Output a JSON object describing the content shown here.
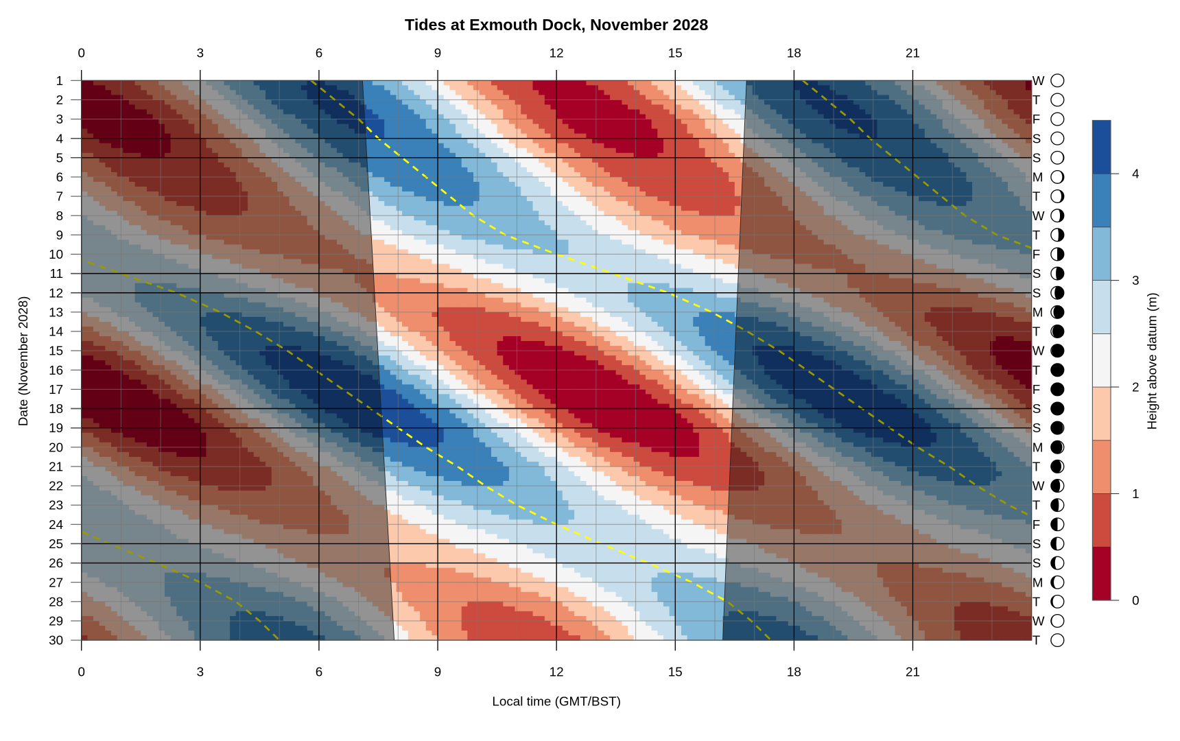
{
  "chart_data": {
    "type": "heatmap",
    "title": "Tides at Exmouth Dock, November 2028",
    "xlabel": "Local time (GMT/BST)",
    "ylabel": "Date (November 2028)",
    "colorbar_label": "Height above datum (m)",
    "xlim": [
      0,
      24
    ],
    "ylim": [
      1,
      30
    ],
    "x_ticks": [
      0,
      3,
      6,
      9,
      12,
      15,
      18,
      21
    ],
    "y_ticks": [
      1,
      2,
      3,
      4,
      5,
      6,
      7,
      8,
      9,
      10,
      11,
      12,
      13,
      14,
      15,
      16,
      17,
      18,
      19,
      20,
      21,
      22,
      23,
      24,
      25,
      26,
      27,
      28,
      29,
      30
    ],
    "colorbar_ticks": [
      0,
      1,
      2,
      3,
      4
    ],
    "levels": [
      0,
      0.5,
      1,
      1.5,
      2,
      2.5,
      3,
      3.5,
      4,
      4.5
    ],
    "level_colors": [
      "#a50026",
      "#cc4a3e",
      "#ee8e6c",
      "#fcc9ad",
      "#f5f5f5",
      "#c7deec",
      "#82b9d8",
      "#3a80b9",
      "#1c4f9a"
    ],
    "tide_period_hours": 12.42,
    "days": [
      {
        "day": 1,
        "weekday": "W",
        "hw_time": 5.8,
        "hw": 4.0,
        "lw": 0.4,
        "moon_illum": 0.0,
        "waxing": true
      },
      {
        "day": 2,
        "weekday": "T",
        "hw_time": 6.4,
        "hw": 4.1,
        "lw": 0.3,
        "moon_illum": 0.0,
        "waxing": true
      },
      {
        "day": 3,
        "weekday": "F",
        "hw_time": 7.0,
        "hw": 4.1,
        "lw": 0.2,
        "moon_illum": 0.01,
        "waxing": true
      },
      {
        "day": 4,
        "weekday": "S",
        "hw_time": 7.5,
        "hw": 4.0,
        "lw": 0.3,
        "moon_illum": 0.03,
        "waxing": true
      },
      {
        "day": 5,
        "weekday": "S",
        "hw_time": 8.1,
        "hw": 3.9,
        "lw": 0.5,
        "moon_illum": 0.07,
        "waxing": true
      },
      {
        "day": 6,
        "weekday": "M",
        "hw_time": 8.7,
        "hw": 3.8,
        "lw": 0.6,
        "moon_illum": 0.13,
        "waxing": true
      },
      {
        "day": 7,
        "weekday": "T",
        "hw_time": 9.3,
        "hw": 3.6,
        "lw": 0.8,
        "moon_illum": 0.2,
        "waxing": true
      },
      {
        "day": 8,
        "weekday": "W",
        "hw_time": 9.9,
        "hw": 3.4,
        "lw": 1.0,
        "moon_illum": 0.3,
        "waxing": true
      },
      {
        "day": 9,
        "weekday": "T",
        "hw_time": 10.7,
        "hw": 3.2,
        "lw": 1.2,
        "moon_illum": 0.42,
        "waxing": true
      },
      {
        "day": 10,
        "weekday": "F",
        "hw_time": 12.0,
        "hw": 3.0,
        "lw": 1.4,
        "moon_illum": 0.52,
        "waxing": true
      },
      {
        "day": 11,
        "weekday": "S",
        "hw_time": 1.0,
        "hw": 2.9,
        "lw": 1.5,
        "moon_illum": 0.62,
        "waxing": true
      },
      {
        "day": 12,
        "weekday": "S",
        "hw_time": 2.4,
        "hw": 3.1,
        "lw": 1.3,
        "moon_illum": 0.72,
        "waxing": true
      },
      {
        "day": 13,
        "weekday": "M",
        "hw_time": 3.5,
        "hw": 3.5,
        "lw": 0.9,
        "moon_illum": 0.81,
        "waxing": true
      },
      {
        "day": 14,
        "weekday": "T",
        "hw_time": 4.4,
        "hw": 3.8,
        "lw": 0.6,
        "moon_illum": 0.89,
        "waxing": true
      },
      {
        "day": 15,
        "weekday": "W",
        "hw_time": 5.2,
        "hw": 4.1,
        "lw": 0.3,
        "moon_illum": 0.95,
        "waxing": true
      },
      {
        "day": 16,
        "weekday": "T",
        "hw_time": 5.9,
        "hw": 4.3,
        "lw": 0.1,
        "moon_illum": 0.99,
        "waxing": true
      },
      {
        "day": 17,
        "weekday": "F",
        "hw_time": 6.6,
        "hw": 4.4,
        "lw": 0.0,
        "moon_illum": 1.0,
        "waxing": false
      },
      {
        "day": 18,
        "weekday": "S",
        "hw_time": 7.3,
        "hw": 4.4,
        "lw": 0.0,
        "moon_illum": 0.98,
        "waxing": false
      },
      {
        "day": 19,
        "weekday": "S",
        "hw_time": 8.0,
        "hw": 4.3,
        "lw": 0.1,
        "moon_illum": 0.94,
        "waxing": false
      },
      {
        "day": 20,
        "weekday": "M",
        "hw_time": 8.7,
        "hw": 4.0,
        "lw": 0.4,
        "moon_illum": 0.88,
        "waxing": false
      },
      {
        "day": 21,
        "weekday": "T",
        "hw_time": 9.5,
        "hw": 3.8,
        "lw": 0.6,
        "moon_illum": 0.8,
        "waxing": false
      },
      {
        "day": 22,
        "weekday": "W",
        "hw_time": 10.2,
        "hw": 3.5,
        "lw": 0.9,
        "moon_illum": 0.71,
        "waxing": false
      },
      {
        "day": 23,
        "weekday": "T",
        "hw_time": 11.0,
        "hw": 3.2,
        "lw": 1.2,
        "moon_illum": 0.61,
        "waxing": false
      },
      {
        "day": 24,
        "weekday": "F",
        "hw_time": 12.0,
        "hw": 3.0,
        "lw": 1.4,
        "moon_illum": 0.51,
        "waxing": false
      },
      {
        "day": 25,
        "weekday": "S",
        "hw_time": 0.7,
        "hw": 2.8,
        "lw": 1.6,
        "moon_illum": 0.41,
        "waxing": false
      },
      {
        "day": 26,
        "weekday": "S",
        "hw_time": 1.9,
        "hw": 2.9,
        "lw": 1.5,
        "moon_illum": 0.31,
        "waxing": false
      },
      {
        "day": 27,
        "weekday": "M",
        "hw_time": 3.0,
        "hw": 3.1,
        "lw": 1.3,
        "moon_illum": 0.22,
        "waxing": false
      },
      {
        "day": 28,
        "weekday": "T",
        "hw_time": 3.9,
        "hw": 3.4,
        "lw": 1.0,
        "moon_illum": 0.14,
        "waxing": false
      },
      {
        "day": 29,
        "weekday": "W",
        "hw_time": 4.5,
        "hw": 3.6,
        "lw": 0.8,
        "moon_illum": 0.07,
        "waxing": false
      },
      {
        "day": 30,
        "weekday": "T",
        "hw_time": 5.0,
        "hw": 3.8,
        "lw": 0.6,
        "moon_illum": 0.03,
        "waxing": false
      }
    ],
    "daylight": {
      "sunrise_day1": 7.1,
      "sunrise_day30": 7.9,
      "sunset_day1": 16.8,
      "sunset_day30": 16.2
    },
    "weekend_days": [
      4,
      5,
      11,
      12,
      18,
      19,
      25,
      26
    ],
    "high_water_line_color": "#ffff00",
    "night_shade_color": "#000000"
  }
}
